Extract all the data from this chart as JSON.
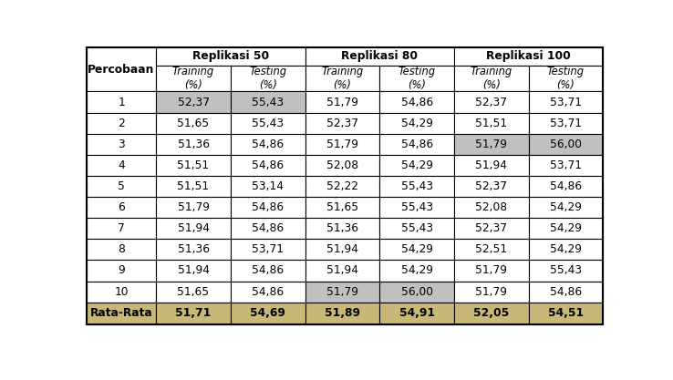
{
  "columns_top": [
    "Replikasi 50",
    "Replikasi 80",
    "Replikasi 100"
  ],
  "row_header": "Percobaan",
  "rows": [
    {
      "label": "1",
      "values": [
        "52,37",
        "55,43",
        "51,79",
        "54,86",
        "52,37",
        "53,71"
      ],
      "highlights": [
        0,
        1
      ]
    },
    {
      "label": "2",
      "values": [
        "51,65",
        "55,43",
        "52,37",
        "54,29",
        "51,51",
        "53,71"
      ],
      "highlights": []
    },
    {
      "label": "3",
      "values": [
        "51,36",
        "54,86",
        "51,79",
        "54,86",
        "51,79",
        "56,00"
      ],
      "highlights": [
        4,
        5
      ]
    },
    {
      "label": "4",
      "values": [
        "51,51",
        "54,86",
        "52,08",
        "54,29",
        "51,94",
        "53,71"
      ],
      "highlights": []
    },
    {
      "label": "5",
      "values": [
        "51,51",
        "53,14",
        "52,22",
        "55,43",
        "52,37",
        "54,86"
      ],
      "highlights": []
    },
    {
      "label": "6",
      "values": [
        "51,79",
        "54,86",
        "51,65",
        "55,43",
        "52,08",
        "54,29"
      ],
      "highlights": []
    },
    {
      "label": "7",
      "values": [
        "51,94",
        "54,86",
        "51,36",
        "55,43",
        "52,37",
        "54,29"
      ],
      "highlights": []
    },
    {
      "label": "8",
      "values": [
        "51,36",
        "53,71",
        "51,94",
        "54,29",
        "52,51",
        "54,29"
      ],
      "highlights": []
    },
    {
      "label": "9",
      "values": [
        "51,94",
        "54,86",
        "51,94",
        "54,29",
        "51,79",
        "55,43"
      ],
      "highlights": []
    },
    {
      "label": "10",
      "values": [
        "51,65",
        "54,86",
        "51,79",
        "56,00",
        "51,79",
        "54,86"
      ],
      "highlights": [
        2,
        3
      ]
    }
  ],
  "rata_row": {
    "label": "Rata-Rata",
    "values": [
      "51,71",
      "54,69",
      "51,89",
      "54,91",
      "52,05",
      "54,51"
    ]
  },
  "highlight_color": "#c0c0c0",
  "rata_color": "#c8b878",
  "border_color": "#000000"
}
